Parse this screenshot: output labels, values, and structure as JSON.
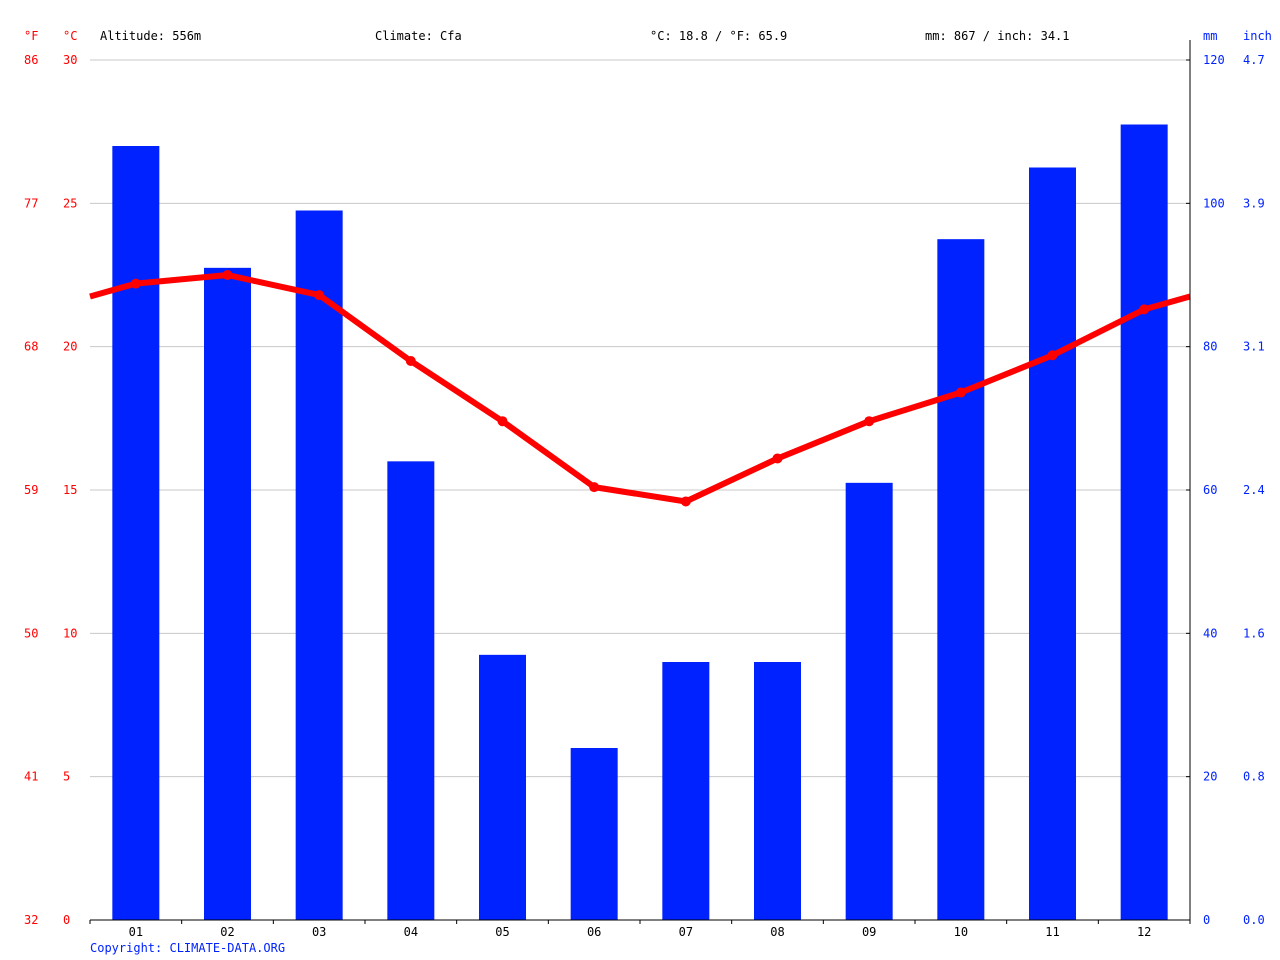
{
  "header": {
    "unit_f": "°F",
    "unit_c": "°C",
    "altitude": "Altitude: 556m",
    "climate": "Climate: Cfa",
    "temperature_avg": "°C: 18.8 / °F: 65.9",
    "precipitation_total": "mm: 867 / inch: 34.1",
    "unit_mm": "mm",
    "unit_inch": "inch"
  },
  "footer": {
    "copyright": "Copyright: CLIMATE-DATA.ORG"
  },
  "colors": {
    "precipitation": "#0022ff",
    "temperature": "#ff0000",
    "grid": "#c8c8c8",
    "axis_text": "#000000"
  },
  "chart_data": {
    "type": "bar",
    "categories": [
      "01",
      "02",
      "03",
      "04",
      "05",
      "06",
      "07",
      "08",
      "09",
      "10",
      "11",
      "12"
    ],
    "series": [
      {
        "type": "bar",
        "axis": "right",
        "values": [
          108,
          91,
          99,
          64,
          37,
          24,
          36,
          36,
          61,
          95,
          105,
          111
        ]
      },
      {
        "type": "line",
        "axis": "left",
        "values": [
          22.2,
          22.5,
          21.8,
          19.5,
          17.4,
          15.1,
          14.6,
          16.1,
          17.4,
          18.4,
          19.7,
          21.3
        ]
      }
    ],
    "left_axis": {
      "unit_c": "°C",
      "unit_f": "°F",
      "ylim": [
        0,
        30
      ],
      "ticks_c": [
        "0",
        "5",
        "10",
        "15",
        "20",
        "25",
        "30"
      ],
      "ticks_f": [
        "32",
        "41",
        "50",
        "59",
        "68",
        "77",
        "86"
      ]
    },
    "right_axis": {
      "unit_mm": "mm",
      "unit_inch": "inch",
      "ylim": [
        0,
        120
      ],
      "ticks_mm": [
        "0",
        "20",
        "40",
        "60",
        "80",
        "100",
        "120"
      ],
      "ticks_inch": [
        "0.0",
        "0.8",
        "1.6",
        "2.4",
        "3.1",
        "3.9",
        "4.7"
      ]
    },
    "grid": true
  }
}
